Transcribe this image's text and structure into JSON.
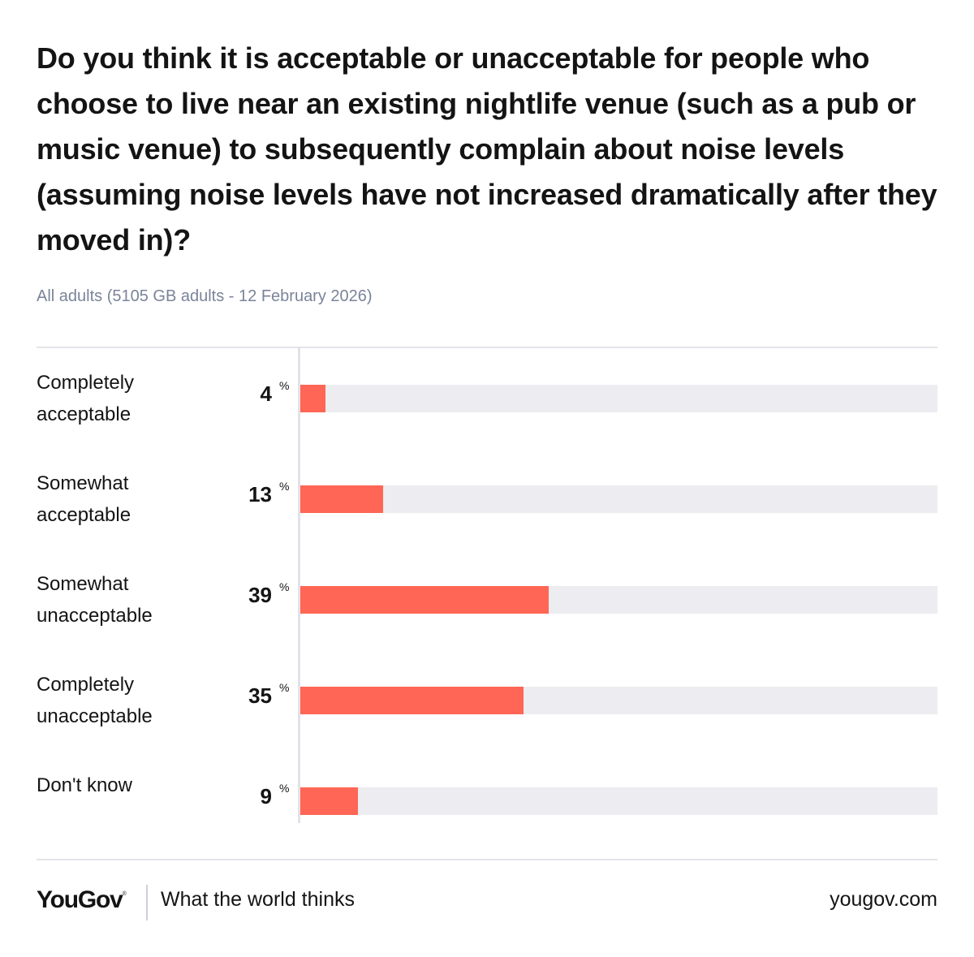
{
  "chart_data": {
    "type": "bar",
    "orientation": "horizontal",
    "title": "Do you think it is acceptable or unacceptable for people who choose to live near an existing nightlife venue (such as a pub or music venue) to subsequently complain about noise levels (assuming noise levels have not increased dramatically after they moved in)?",
    "subtitle": "All adults (5105 GB adults - 12 February 2026)",
    "categories": [
      [
        "Completely",
        "acceptable"
      ],
      [
        "Somewhat",
        "acceptable"
      ],
      [
        "Somewhat",
        "unacceptable"
      ],
      [
        "Completely",
        "unacceptable"
      ],
      [
        "Don't know"
      ]
    ],
    "values": [
      4,
      13,
      39,
      35,
      9
    ],
    "value_unit": "%",
    "xlim": [
      0,
      100
    ],
    "bar_color": "#ff6655",
    "track_color": "#ececf1",
    "grid": false
  },
  "footer": {
    "logo": "YouGov",
    "tagline": "What the world thinks",
    "site": "yougov.com"
  }
}
